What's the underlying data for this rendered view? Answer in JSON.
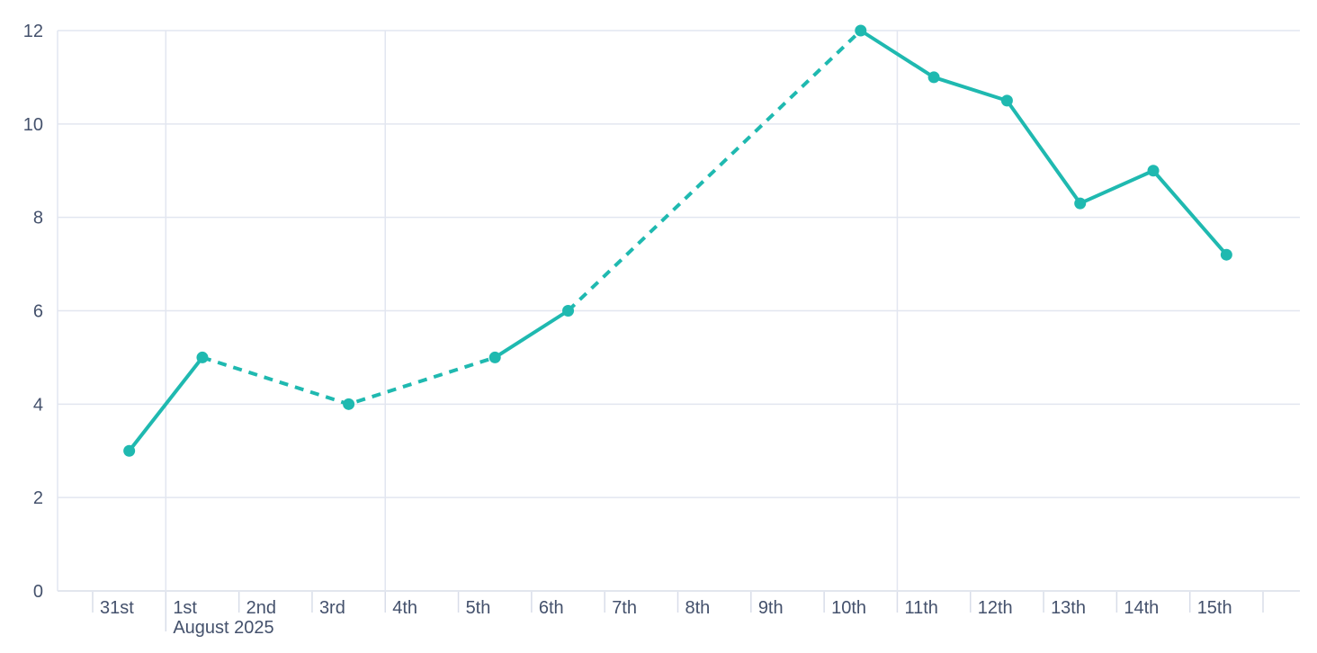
{
  "colors": {
    "line": "#1fb9b0",
    "marker": "#1fb9b0",
    "axis_text": "#44516c",
    "gridline": "#e2e6f0",
    "axis_line": "#d8dde9",
    "tick": "#d8dde9",
    "background": "#ffffff"
  },
  "chart_data": {
    "type": "line",
    "title": "",
    "x_axis": {
      "categories": [
        "31st",
        "1st",
        "2nd",
        "3rd",
        "4th",
        "5th",
        "6th",
        "7th",
        "8th",
        "9th",
        "10th",
        "11th",
        "12th",
        "13th",
        "14th",
        "15th"
      ],
      "month_label": "August 2025",
      "month_label_under_category": "1st",
      "month_boundary_category": "1st",
      "vertical_gridline_categories": [
        "1st",
        "4th",
        "11th"
      ]
    },
    "y_axis": {
      "tick_labels": [
        "0",
        "2",
        "4",
        "6",
        "8",
        "10",
        "12"
      ],
      "min": 0,
      "max": 12
    },
    "grid": {
      "horizontal": true
    },
    "legend": null,
    "series": [
      {
        "name": "",
        "color": "#1fb9b0",
        "points": [
          {
            "category": "31st",
            "value": 3,
            "segment_to_next": "solid"
          },
          {
            "category": "1st",
            "value": 5,
            "segment_to_next": "dashed"
          },
          {
            "category": "3rd",
            "value": 4,
            "segment_to_next": "dashed"
          },
          {
            "category": "5th",
            "value": 5,
            "segment_to_next": "solid"
          },
          {
            "category": "6th",
            "value": 6,
            "segment_to_next": "dashed"
          },
          {
            "category": "10th",
            "value": 12,
            "segment_to_next": "solid"
          },
          {
            "category": "11th",
            "value": 11,
            "segment_to_next": "solid"
          },
          {
            "category": "12th",
            "value": 10.5,
            "segment_to_next": "solid"
          },
          {
            "category": "13th",
            "value": 8.3,
            "segment_to_next": "solid"
          },
          {
            "category": "14th",
            "value": 9,
            "segment_to_next": "solid"
          },
          {
            "category": "15th",
            "value": 7.2,
            "segment_to_next": null
          }
        ]
      }
    ]
  }
}
